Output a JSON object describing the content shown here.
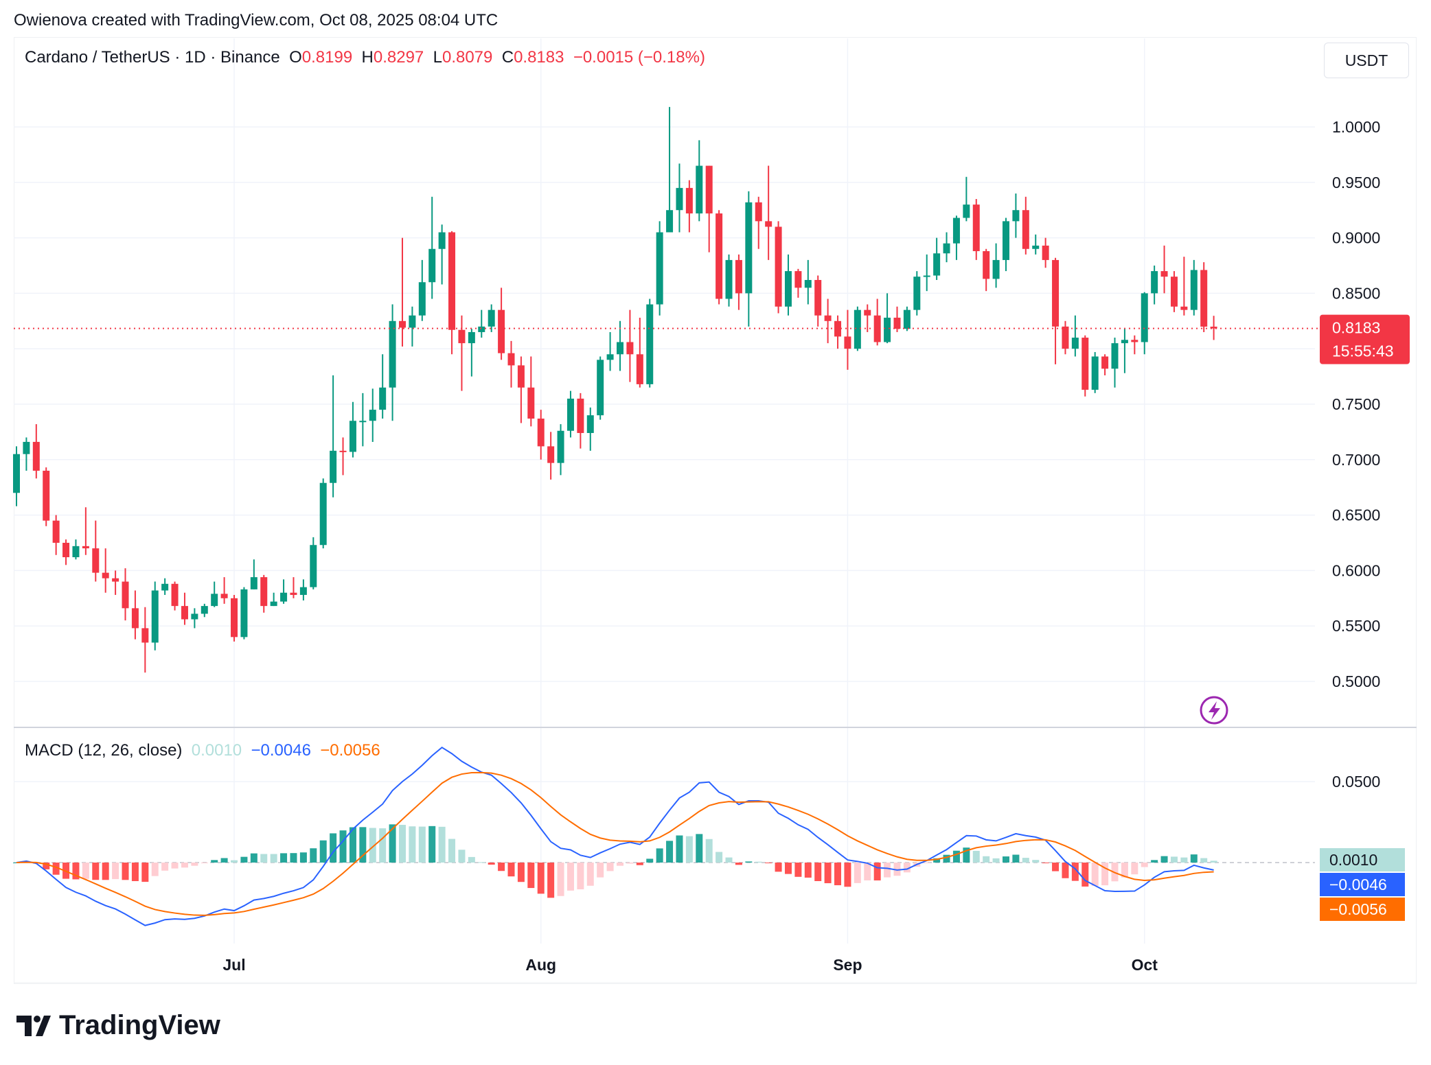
{
  "credit": "Owienova created with TradingView.com, Oct 08, 2025 08:04 UTC",
  "legend": {
    "symbol": "Cardano / TetherUS · 1D · Binance",
    "o_label": "O",
    "o": "0.8199",
    "h_label": "H",
    "h": "0.8297",
    "l_label": "L",
    "l": "0.8079",
    "c_label": "C",
    "c": "0.8183",
    "change": "−0.0015 (−0.18%)"
  },
  "currency_button": "USDT",
  "last_price_label": {
    "price": "0.8183",
    "countdown": "15:55:43"
  },
  "macd_legend": {
    "title": "MACD (12, 26, close)",
    "histogram": "0.0010",
    "macd": "−0.0046",
    "signal": "−0.0056"
  },
  "logo_text": "TradingView",
  "colors": {
    "up": "#089981",
    "down": "#f23645",
    "macd": "#2962ff",
    "signal": "#ff6d00",
    "hist_up_strong": "#26a69a",
    "hist_up_weak": "#b2dfdb",
    "hist_down_strong": "#ff5252",
    "hist_down_weak": "#ffcdd2"
  },
  "icons": {
    "alert": "lightning-icon"
  },
  "chart_data": {
    "type": "candlestick",
    "first_date": "2025-06-09",
    "last_date": "2025-10-08",
    "interval": "1D",
    "y_ticks": [
      "1.0000",
      "0.9500",
      "0.9000",
      "0.8500",
      "0.8000",
      "0.7500",
      "0.7000",
      "0.6500",
      "0.6000",
      "0.5500",
      "0.5000"
    ],
    "ylim": [
      0.47,
      1.04
    ],
    "x_ticks": [
      "Jul",
      "Aug",
      "Sep",
      "Oct"
    ],
    "macd_y_ticks": [
      "0.0500"
    ],
    "ohlc": [
      [
        0.67,
        0.712,
        0.658,
        0.705
      ],
      [
        0.705,
        0.72,
        0.69,
        0.716
      ],
      [
        0.716,
        0.732,
        0.683,
        0.69
      ],
      [
        0.69,
        0.693,
        0.64,
        0.645
      ],
      [
        0.645,
        0.65,
        0.614,
        0.625
      ],
      [
        0.625,
        0.628,
        0.605,
        0.612
      ],
      [
        0.612,
        0.628,
        0.61,
        0.622
      ],
      [
        0.622,
        0.657,
        0.614,
        0.62
      ],
      [
        0.62,
        0.645,
        0.59,
        0.598
      ],
      [
        0.598,
        0.62,
        0.58,
        0.593
      ],
      [
        0.593,
        0.6,
        0.578,
        0.59
      ],
      [
        0.59,
        0.602,
        0.555,
        0.566
      ],
      [
        0.566,
        0.582,
        0.538,
        0.548
      ],
      [
        0.548,
        0.567,
        0.508,
        0.535
      ],
      [
        0.535,
        0.59,
        0.528,
        0.582
      ],
      [
        0.582,
        0.593,
        0.578,
        0.588
      ],
      [
        0.588,
        0.59,
        0.564,
        0.568
      ],
      [
        0.568,
        0.58,
        0.551,
        0.556
      ],
      [
        0.556,
        0.566,
        0.548,
        0.561
      ],
      [
        0.561,
        0.57,
        0.558,
        0.568
      ],
      [
        0.568,
        0.59,
        0.567,
        0.579
      ],
      [
        0.579,
        0.594,
        0.57,
        0.575
      ],
      [
        0.575,
        0.578,
        0.536,
        0.54
      ],
      [
        0.54,
        0.585,
        0.538,
        0.583
      ],
      [
        0.583,
        0.61,
        0.583,
        0.594
      ],
      [
        0.594,
        0.596,
        0.562,
        0.568
      ],
      [
        0.568,
        0.58,
        0.568,
        0.572
      ],
      [
        0.572,
        0.592,
        0.57,
        0.58
      ],
      [
        0.58,
        0.594,
        0.575,
        0.578
      ],
      [
        0.578,
        0.592,
        0.573,
        0.585
      ],
      [
        0.585,
        0.63,
        0.583,
        0.623
      ],
      [
        0.623,
        0.683,
        0.62,
        0.679
      ],
      [
        0.679,
        0.776,
        0.666,
        0.708
      ],
      [
        0.708,
        0.72,
        0.686,
        0.707
      ],
      [
        0.707,
        0.752,
        0.702,
        0.735
      ],
      [
        0.735,
        0.76,
        0.712,
        0.735
      ],
      [
        0.735,
        0.764,
        0.716,
        0.745
      ],
      [
        0.745,
        0.795,
        0.737,
        0.765
      ],
      [
        0.765,
        0.84,
        0.735,
        0.825
      ],
      [
        0.825,
        0.9,
        0.802,
        0.819
      ],
      [
        0.819,
        0.838,
        0.802,
        0.83
      ],
      [
        0.83,
        0.88,
        0.825,
        0.86
      ],
      [
        0.86,
        0.937,
        0.845,
        0.89
      ],
      [
        0.89,
        0.912,
        0.858,
        0.905
      ],
      [
        0.905,
        0.906,
        0.795,
        0.817
      ],
      [
        0.817,
        0.83,
        0.762,
        0.805
      ],
      [
        0.805,
        0.818,
        0.775,
        0.815
      ],
      [
        0.815,
        0.835,
        0.81,
        0.82
      ],
      [
        0.82,
        0.84,
        0.815,
        0.835
      ],
      [
        0.835,
        0.855,
        0.79,
        0.796
      ],
      [
        0.796,
        0.807,
        0.765,
        0.785
      ],
      [
        0.785,
        0.793,
        0.733,
        0.765
      ],
      [
        0.765,
        0.793,
        0.73,
        0.737
      ],
      [
        0.737,
        0.745,
        0.7,
        0.712
      ],
      [
        0.712,
        0.725,
        0.682,
        0.697
      ],
      [
        0.697,
        0.732,
        0.686,
        0.726
      ],
      [
        0.726,
        0.762,
        0.72,
        0.755
      ],
      [
        0.755,
        0.76,
        0.71,
        0.724
      ],
      [
        0.724,
        0.747,
        0.708,
        0.74
      ],
      [
        0.74,
        0.793,
        0.736,
        0.79
      ],
      [
        0.79,
        0.815,
        0.78,
        0.795
      ],
      [
        0.795,
        0.825,
        0.78,
        0.806
      ],
      [
        0.806,
        0.835,
        0.77,
        0.795
      ],
      [
        0.795,
        0.828,
        0.765,
        0.768
      ],
      [
        0.768,
        0.845,
        0.765,
        0.84
      ],
      [
        0.84,
        0.915,
        0.83,
        0.905
      ],
      [
        0.905,
        1.018,
        0.905,
        0.925
      ],
      [
        0.925,
        0.967,
        0.905,
        0.945
      ],
      [
        0.945,
        0.952,
        0.905,
        0.922
      ],
      [
        0.922,
        0.988,
        0.915,
        0.965
      ],
      [
        0.965,
        0.965,
        0.887,
        0.922
      ],
      [
        0.922,
        0.925,
        0.84,
        0.845
      ],
      [
        0.845,
        0.885,
        0.838,
        0.88
      ],
      [
        0.88,
        0.885,
        0.835,
        0.85
      ],
      [
        0.85,
        0.942,
        0.82,
        0.932
      ],
      [
        0.932,
        0.937,
        0.89,
        0.915
      ],
      [
        0.915,
        0.965,
        0.88,
        0.91
      ],
      [
        0.91,
        0.915,
        0.832,
        0.838
      ],
      [
        0.838,
        0.885,
        0.83,
        0.87
      ],
      [
        0.87,
        0.872,
        0.846,
        0.855
      ],
      [
        0.855,
        0.88,
        0.84,
        0.862
      ],
      [
        0.862,
        0.866,
        0.82,
        0.83
      ],
      [
        0.83,
        0.845,
        0.805,
        0.825
      ],
      [
        0.825,
        0.83,
        0.8,
        0.811
      ],
      [
        0.811,
        0.835,
        0.781,
        0.8
      ],
      [
        0.8,
        0.838,
        0.798,
        0.835
      ],
      [
        0.835,
        0.84,
        0.815,
        0.83
      ],
      [
        0.83,
        0.845,
        0.803,
        0.806
      ],
      [
        0.806,
        0.85,
        0.805,
        0.828
      ],
      [
        0.828,
        0.838,
        0.815,
        0.818
      ],
      [
        0.818,
        0.838,
        0.816,
        0.835
      ],
      [
        0.835,
        0.87,
        0.83,
        0.865
      ],
      [
        0.865,
        0.885,
        0.852,
        0.866
      ],
      [
        0.866,
        0.9,
        0.862,
        0.886
      ],
      [
        0.886,
        0.905,
        0.878,
        0.895
      ],
      [
        0.895,
        0.92,
        0.88,
        0.918
      ],
      [
        0.918,
        0.955,
        0.915,
        0.93
      ],
      [
        0.93,
        0.935,
        0.88,
        0.888
      ],
      [
        0.888,
        0.89,
        0.852,
        0.863
      ],
      [
        0.863,
        0.895,
        0.855,
        0.88
      ],
      [
        0.88,
        0.918,
        0.87,
        0.915
      ],
      [
        0.915,
        0.94,
        0.9,
        0.925
      ],
      [
        0.925,
        0.937,
        0.885,
        0.89
      ],
      [
        0.89,
        0.903,
        0.885,
        0.893
      ],
      [
        0.893,
        0.9,
        0.873,
        0.88
      ],
      [
        0.88,
        0.882,
        0.786,
        0.82
      ],
      [
        0.82,
        0.825,
        0.795,
        0.8
      ],
      [
        0.8,
        0.83,
        0.793,
        0.81
      ],
      [
        0.81,
        0.812,
        0.757,
        0.763
      ],
      [
        0.763,
        0.797,
        0.76,
        0.793
      ],
      [
        0.793,
        0.795,
        0.776,
        0.782
      ],
      [
        0.782,
        0.81,
        0.765,
        0.805
      ],
      [
        0.805,
        0.818,
        0.778,
        0.808
      ],
      [
        0.808,
        0.812,
        0.795,
        0.806
      ],
      [
        0.806,
        0.851,
        0.795,
        0.85
      ],
      [
        0.85,
        0.875,
        0.84,
        0.87
      ],
      [
        0.87,
        0.893,
        0.85,
        0.865
      ],
      [
        0.865,
        0.87,
        0.833,
        0.838
      ],
      [
        0.838,
        0.883,
        0.83,
        0.835
      ],
      [
        0.835,
        0.88,
        0.83,
        0.871
      ],
      [
        0.871,
        0.878,
        0.815,
        0.8199
      ],
      [
        0.8199,
        0.8297,
        0.8079,
        0.8183
      ]
    ]
  }
}
